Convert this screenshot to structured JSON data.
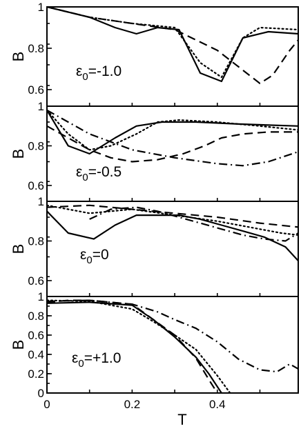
{
  "chart_data": [
    {
      "type": "line",
      "ylabel": "B",
      "annotation": {
        "symbol": "ε",
        "subscript": "0",
        "value": "=-1.0"
      },
      "ylim": [
        0.52,
        1.0
      ],
      "yticks": [
        0.6,
        0.8,
        1.0
      ],
      "ytick_labels": [
        "0.6",
        "0.8",
        "1"
      ],
      "xlim": [
        0,
        0.59
      ],
      "series": [
        {
          "style": "solid",
          "x": [
            0,
            0.1,
            0.16,
            0.21,
            0.26,
            0.31,
            0.36,
            0.41,
            0.46,
            0.52,
            0.59
          ],
          "y": [
            1.0,
            0.95,
            0.9,
            0.87,
            0.9,
            0.89,
            0.68,
            0.64,
            0.85,
            0.88,
            0.87
          ]
        },
        {
          "style": "dashed",
          "x": [
            0,
            0.1,
            0.2,
            0.3,
            0.4,
            0.5,
            0.53,
            0.57,
            0.59
          ],
          "y": [
            1.0,
            0.95,
            0.92,
            0.89,
            0.79,
            0.63,
            0.67,
            0.79,
            0.84
          ]
        },
        {
          "style": "dotted",
          "x": [
            0,
            0.1,
            0.2,
            0.3,
            0.36,
            0.41,
            0.46,
            0.5,
            0.59
          ],
          "y": [
            1.0,
            0.95,
            0.92,
            0.9,
            0.73,
            0.66,
            0.85,
            0.9,
            0.89
          ]
        }
      ]
    },
    {
      "type": "line",
      "ylabel": "B",
      "annotation": {
        "symbol": "ε",
        "subscript": "0",
        "value": "=-0.5"
      },
      "ylim": [
        0.52,
        1.0
      ],
      "yticks": [
        0.6,
        0.8,
        1.0
      ],
      "ytick_labels": [
        "0.6",
        "0.8",
        "1"
      ],
      "xlim": [
        0,
        0.59
      ],
      "series": [
        {
          "style": "solid",
          "x": [
            0,
            0.05,
            0.1,
            0.16,
            0.21,
            0.27,
            0.35,
            0.45,
            0.59
          ],
          "y": [
            0.98,
            0.8,
            0.76,
            0.84,
            0.9,
            0.92,
            0.92,
            0.91,
            0.9
          ]
        },
        {
          "style": "dashed",
          "x": [
            0,
            0.05,
            0.1,
            0.15,
            0.2,
            0.26,
            0.32,
            0.37,
            0.41,
            0.46,
            0.52,
            0.59
          ],
          "y": [
            0.9,
            0.84,
            0.78,
            0.74,
            0.72,
            0.73,
            0.76,
            0.8,
            0.84,
            0.86,
            0.87,
            0.87
          ]
        },
        {
          "style": "dotted",
          "x": [
            0,
            0.05,
            0.1,
            0.15,
            0.21,
            0.26,
            0.31,
            0.4,
            0.5,
            0.59
          ],
          "y": [
            0.98,
            0.86,
            0.78,
            0.8,
            0.86,
            0.92,
            0.93,
            0.92,
            0.9,
            0.88
          ]
        },
        {
          "style": "dashdot",
          "x": [
            0,
            0.1,
            0.2,
            0.3,
            0.4,
            0.46,
            0.52,
            0.59
          ],
          "y": [
            0.98,
            0.86,
            0.78,
            0.74,
            0.71,
            0.7,
            0.72,
            0.77
          ]
        }
      ]
    },
    {
      "type": "line",
      "ylabel": "B",
      "annotation": {
        "symbol": "ε",
        "subscript": "0",
        "value": "=0"
      },
      "ylim": [
        0.52,
        1.0
      ],
      "yticks": [
        0.6,
        0.8,
        1.0
      ],
      "ytick_labels": [
        "0.6",
        "0.8",
        "1"
      ],
      "xlim": [
        0,
        0.59
      ],
      "series": [
        {
          "style": "solid",
          "x": [
            0,
            0.05,
            0.11,
            0.16,
            0.21,
            0.26,
            0.31,
            0.36,
            0.41,
            0.46,
            0.51,
            0.56,
            0.59
          ],
          "y": [
            0.95,
            0.84,
            0.81,
            0.88,
            0.93,
            0.93,
            0.93,
            0.91,
            0.88,
            0.85,
            0.82,
            0.77,
            0.7
          ]
        },
        {
          "style": "dashed",
          "x": [
            0,
            0.1,
            0.2,
            0.3,
            0.4,
            0.5,
            0.59
          ],
          "y": [
            0.97,
            0.98,
            0.96,
            0.94,
            0.92,
            0.89,
            0.87
          ]
        },
        {
          "style": "dotted",
          "x": [
            0,
            0.05,
            0.1,
            0.2,
            0.3,
            0.4,
            0.45,
            0.5,
            0.55,
            0.59
          ],
          "y": [
            0.98,
            0.96,
            0.94,
            0.96,
            0.93,
            0.9,
            0.88,
            0.86,
            0.84,
            0.83
          ]
        },
        {
          "style": "dashdot",
          "x": [
            0.1,
            0.15,
            0.21,
            0.26,
            0.31,
            0.36,
            0.41,
            0.46,
            0.51,
            0.56,
            0.59
          ],
          "y": [
            0.91,
            0.96,
            0.97,
            0.95,
            0.92,
            0.89,
            0.86,
            0.83,
            0.81,
            0.8,
            0.84
          ]
        }
      ]
    },
    {
      "type": "line",
      "ylabel": "B",
      "xlabel": "T",
      "annotation": {
        "symbol": "ε",
        "subscript": "0",
        "value": "=+1.0"
      },
      "ylim": [
        0,
        1.0
      ],
      "yticks": [
        0,
        0.2,
        0.4,
        0.6,
        0.8,
        1.0
      ],
      "ytick_labels": [
        "0",
        "0.2",
        "0.4",
        "0.6",
        "0.8",
        "1"
      ],
      "xlim": [
        0,
        0.59
      ],
      "xticks": [
        0,
        0.2,
        0.4
      ],
      "xtick_labels": [
        "0",
        "0.2",
        "0.4"
      ],
      "series": [
        {
          "style": "solid",
          "x": [
            0,
            0.1,
            0.2,
            0.25,
            0.3,
            0.35,
            0.38,
            0.41
          ],
          "y": [
            0.93,
            0.94,
            0.91,
            0.76,
            0.58,
            0.37,
            0.2,
            0.0
          ]
        },
        {
          "style": "dashed",
          "x": [
            0,
            0.05,
            0.1,
            0.2,
            0.25,
            0.3,
            0.35,
            0.38,
            0.4
          ],
          "y": [
            0.94,
            0.96,
            0.96,
            0.92,
            0.76,
            0.6,
            0.36,
            0.14,
            0.0
          ]
        },
        {
          "style": "dotted",
          "x": [
            0,
            0.1,
            0.2,
            0.25,
            0.3,
            0.35,
            0.4,
            0.43
          ],
          "y": [
            0.96,
            0.95,
            0.87,
            0.74,
            0.6,
            0.45,
            0.18,
            0.0
          ]
        },
        {
          "style": "dashdot",
          "x": [
            0,
            0.1,
            0.2,
            0.26,
            0.3,
            0.35,
            0.4,
            0.45,
            0.5,
            0.54,
            0.57,
            0.59
          ],
          "y": [
            0.95,
            0.96,
            0.92,
            0.84,
            0.76,
            0.67,
            0.53,
            0.35,
            0.24,
            0.22,
            0.3,
            0.25
          ]
        }
      ]
    }
  ]
}
